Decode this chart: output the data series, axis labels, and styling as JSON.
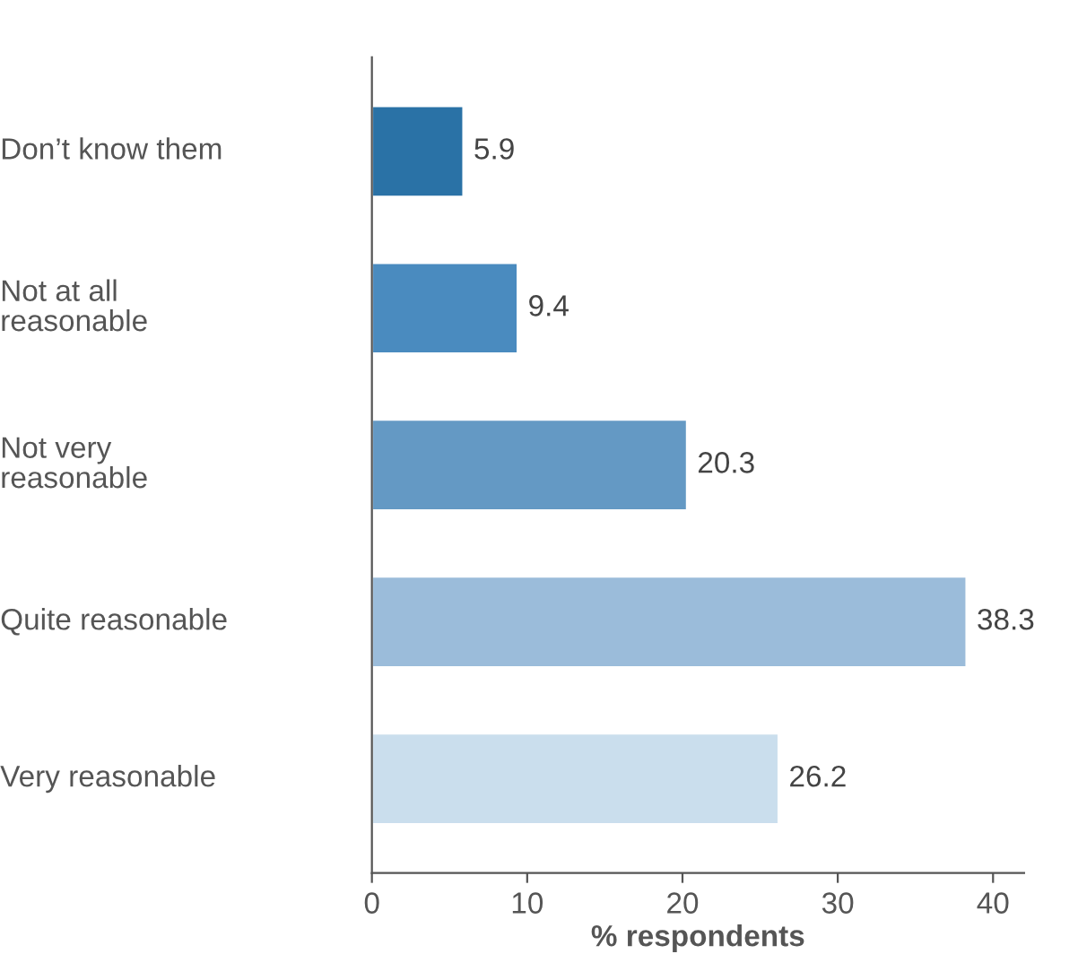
{
  "chart_data": {
    "type": "bar",
    "orientation": "horizontal",
    "xlabel": "% respondents",
    "categories": [
      "Don’t know them",
      "Not at all\nreasonable",
      "Not very\nreasonable",
      "Quite reasonable",
      "Very reasonable"
    ],
    "values": [
      5.9,
      9.4,
      20.3,
      38.3,
      26.2
    ],
    "colors": [
      "#2a72a6",
      "#4a8bbf",
      "#6499c4",
      "#9bbcda",
      "#cadeed"
    ],
    "xlim": [
      0,
      42
    ],
    "xticks": [
      0,
      10,
      20,
      30,
      40
    ],
    "data_labels": true,
    "grid": false,
    "legend": false
  }
}
